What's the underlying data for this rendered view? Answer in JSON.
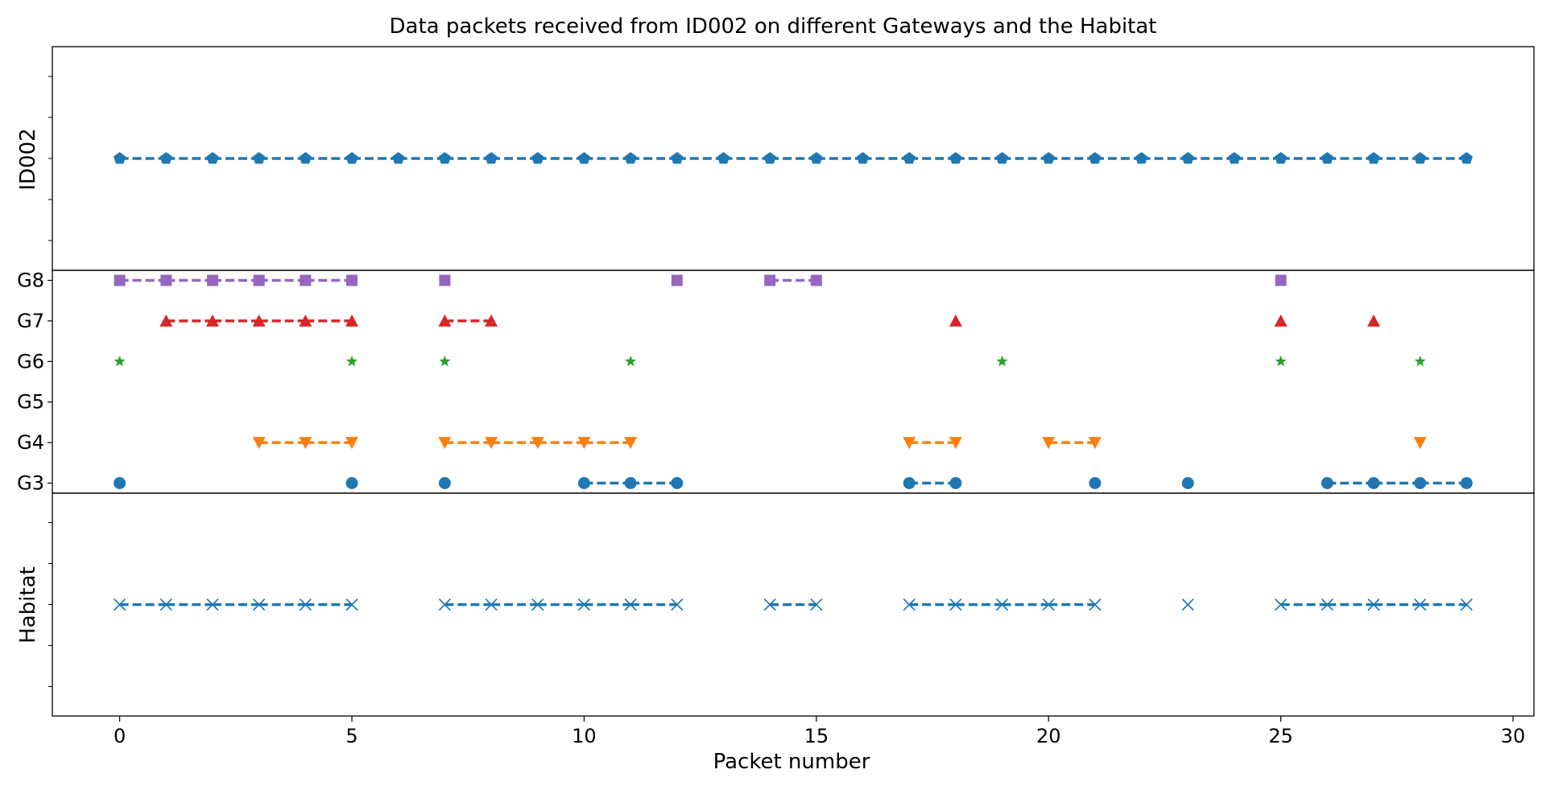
{
  "chart_data": {
    "type": "scatter",
    "title": "Data packets received from ID002 on different Gateways and the Habitat",
    "xlabel": "Packet number",
    "xlim": [
      -1.45,
      30.45
    ],
    "xticks": [
      0,
      5,
      10,
      15,
      20,
      25,
      30
    ],
    "grid": false,
    "legend": "none",
    "panels": [
      {
        "name": "ID002",
        "ylabel": "ID002",
        "y_tick_labels": [],
        "series": [
          {
            "row": "ID002",
            "marker": "pentagon",
            "color": "#1f77b4",
            "linestyle": "dashed",
            "x": [
              0,
              1,
              2,
              3,
              4,
              5,
              6,
              7,
              8,
              9,
              10,
              11,
              12,
              13,
              14,
              15,
              16,
              17,
              18,
              19,
              20,
              21,
              22,
              23,
              24,
              25,
              26,
              27,
              28,
              29
            ]
          }
        ]
      },
      {
        "name": "Gateways",
        "ylabel": "",
        "y_tick_labels": [
          "G8",
          "G7",
          "G6",
          "G5",
          "G4",
          "G3"
        ],
        "series": [
          {
            "row": "G8",
            "marker": "square",
            "color": "#9467bd",
            "linestyle": "dashed",
            "x": [
              0,
              1,
              2,
              3,
              4,
              5,
              7,
              12,
              14,
              15,
              25
            ]
          },
          {
            "row": "G7",
            "marker": "triangle-up",
            "color": "#d62728",
            "linestyle": "dashed",
            "x": [
              1,
              2,
              3,
              4,
              5,
              7,
              8,
              18,
              25,
              27
            ]
          },
          {
            "row": "G6",
            "marker": "star",
            "color": "#2ca02c",
            "linestyle": "dashed",
            "x": [
              0,
              5,
              7,
              11,
              19,
              25,
              28
            ]
          },
          {
            "row": "G5",
            "marker": "none",
            "color": "#8c564b",
            "linestyle": "dashed",
            "x": []
          },
          {
            "row": "G4",
            "marker": "triangle-down",
            "color": "#ff7f0e",
            "linestyle": "dashed",
            "x": [
              3,
              4,
              5,
              7,
              8,
              9,
              10,
              11,
              17,
              18,
              20,
              21,
              28
            ]
          },
          {
            "row": "G3",
            "marker": "circle",
            "color": "#1f77b4",
            "linestyle": "dashed",
            "x": [
              0,
              5,
              7,
              10,
              11,
              12,
              17,
              18,
              21,
              23,
              26,
              27,
              28,
              29
            ]
          }
        ]
      },
      {
        "name": "Habitat",
        "ylabel": "Habitat",
        "y_tick_labels": [],
        "series": [
          {
            "row": "Habitat",
            "marker": "x",
            "color": "#1f77b4",
            "linestyle": "dashed",
            "x": [
              0,
              1,
              2,
              3,
              4,
              5,
              7,
              8,
              9,
              10,
              11,
              12,
              14,
              15,
              17,
              18,
              19,
              20,
              21,
              23,
              25,
              26,
              27,
              28,
              29
            ]
          }
        ]
      }
    ]
  }
}
